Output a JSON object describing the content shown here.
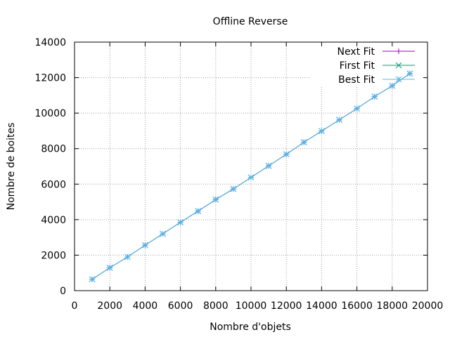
{
  "chart_data": {
    "type": "line",
    "title": "Offline Reverse",
    "xlabel": "Nombre d'objets",
    "ylabel": "Nombre de boites",
    "xlim": [
      0,
      20000
    ],
    "ylim": [
      0,
      14000
    ],
    "xticks": [
      0,
      2000,
      4000,
      6000,
      8000,
      10000,
      12000,
      14000,
      16000,
      18000,
      20000
    ],
    "yticks": [
      0,
      2000,
      4000,
      6000,
      8000,
      10000,
      12000,
      14000
    ],
    "grid": true,
    "legend_position": "top-right",
    "x": [
      1000,
      2000,
      3000,
      4000,
      5000,
      6000,
      7000,
      8000,
      9000,
      10000,
      11000,
      12000,
      13000,
      14000,
      15000,
      16000,
      17000,
      18000,
      19000
    ],
    "series": [
      {
        "name": "Next Fit",
        "color": "#9400d3",
        "marker": "plus",
        "values": [
          640,
          1290,
          1900,
          2560,
          3200,
          3850,
          4480,
          5130,
          5730,
          6380,
          7030,
          7680,
          8360,
          8990,
          9620,
          10260,
          10930,
          11540,
          12230
        ]
      },
      {
        "name": "First Fit",
        "color": "#009e73",
        "marker": "cross",
        "values": [
          640,
          1290,
          1900,
          2560,
          3200,
          3850,
          4480,
          5130,
          5730,
          6380,
          7030,
          7680,
          8360,
          8990,
          9620,
          10260,
          10930,
          11540,
          12230
        ]
      },
      {
        "name": "Best Fit",
        "color": "#56b4e9",
        "marker": "star",
        "values": [
          640,
          1290,
          1900,
          2560,
          3200,
          3850,
          4480,
          5130,
          5730,
          6380,
          7030,
          7680,
          8360,
          8990,
          9620,
          10260,
          10930,
          11540,
          12230
        ]
      }
    ]
  }
}
